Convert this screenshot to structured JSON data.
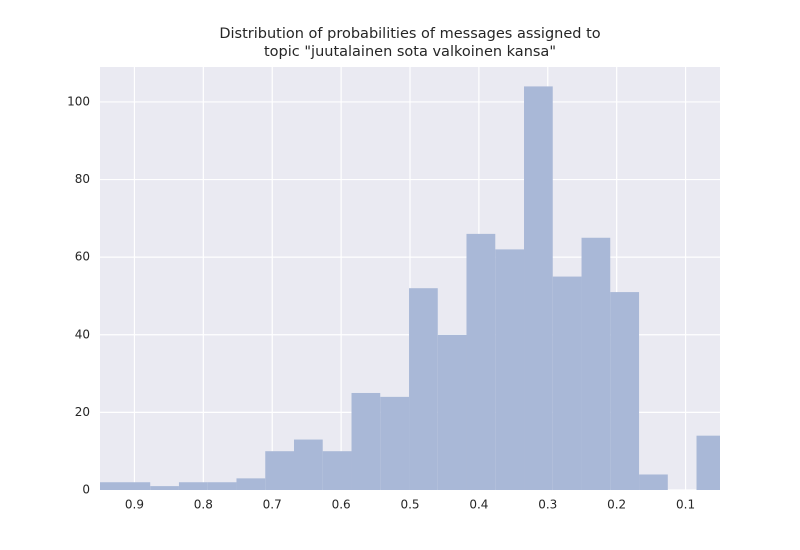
{
  "chart_data": {
    "type": "histogram",
    "title": [
      "Distribution of probabilities of messages assigned to",
      "topic \"juutalainen sota valkoinen kansa\""
    ],
    "bins": [
      0.9606,
      0.9188,
      0.8771,
      0.8354,
      0.7936,
      0.7519,
      0.7101,
      0.6684,
      0.6267,
      0.5849,
      0.5432,
      0.5014,
      0.4597,
      0.418,
      0.3762,
      0.3345,
      0.2928,
      0.251,
      0.2093,
      0.1675,
      0.1258,
      0.0841,
      0.0423
    ],
    "values": [
      2,
      2,
      1,
      2,
      2,
      3,
      10,
      13,
      10,
      25,
      24,
      52,
      40,
      66,
      62,
      104,
      55,
      65,
      51,
      4,
      0,
      14
    ],
    "color": "#a9b8d7",
    "xlim": [
      0.95,
      0.05
    ],
    "xticks": [
      0.9,
      0.8,
      0.7,
      0.6,
      0.5,
      0.4,
      0.3,
      0.2,
      0.1
    ],
    "ylim": [
      0,
      109
    ],
    "yticks": [
      0,
      20,
      40,
      60,
      80,
      100
    ],
    "grid": true
  }
}
